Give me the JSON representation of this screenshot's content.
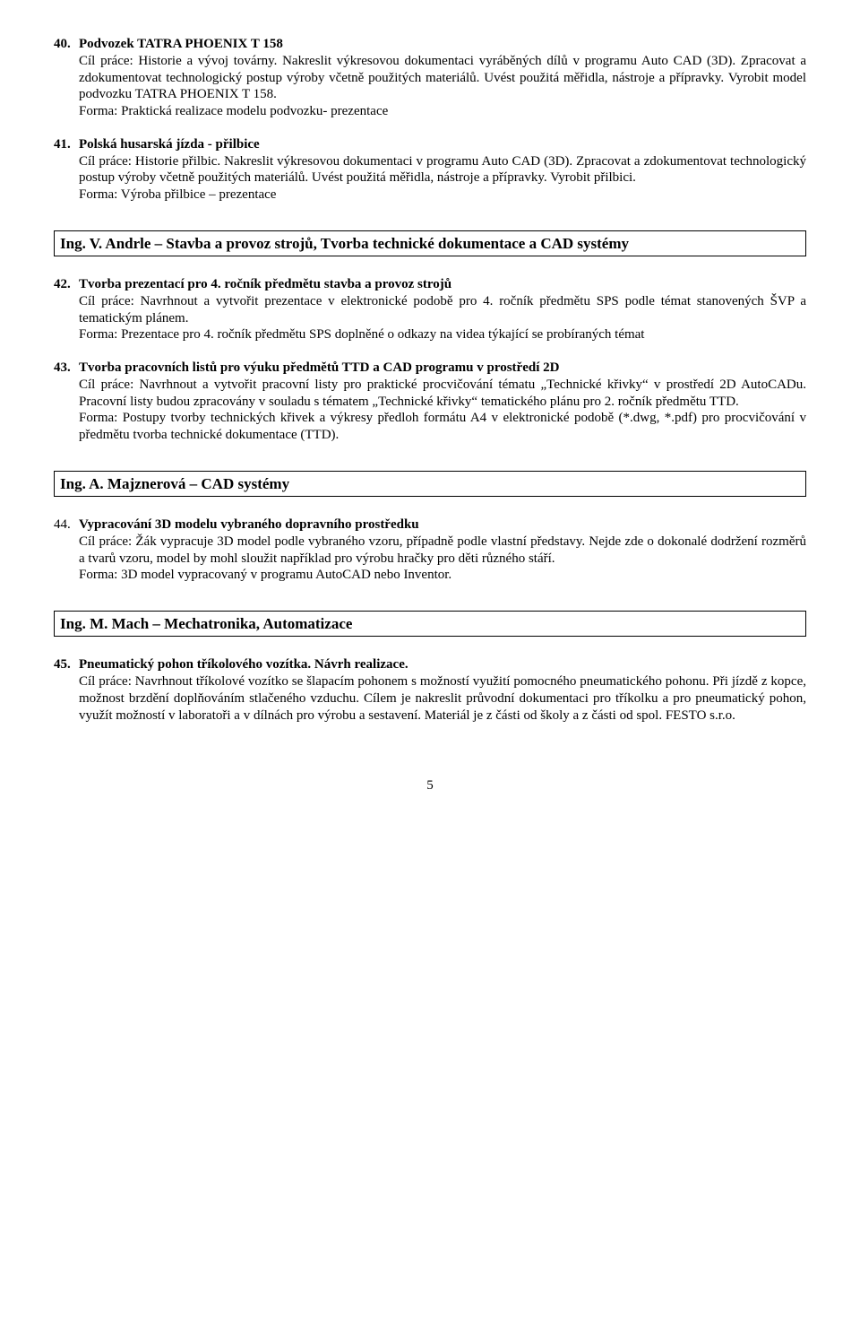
{
  "items": {
    "i40": {
      "num": "40.",
      "title": "Podvozek TATRA PHOENIX T 158",
      "body": "Cíl práce: Historie a vývoj továrny. Nakreslit výkresovou dokumentaci vyráběných dílů v programu Auto CAD (3D). Zpracovat a zdokumentovat technologický postup výroby včetně použitých materiálů. Uvést použitá měřidla, nástroje a přípravky. Vyrobit model podvozku TATRA PHOENIX T 158.\nForma: Praktická realizace modelu podvozku- prezentace"
    },
    "i41": {
      "num": "41.",
      "title": "Polská husarská jízda - přilbice",
      "body": "Cíl práce: Historie přilbic. Nakreslit výkresovou dokumentaci v programu Auto CAD (3D). Zpracovat a zdokumentovat technologický postup výroby včetně použitých materiálů. Uvést použitá měřidla, nástroje a přípravky. Vyrobit přilbici.\nForma: Výroba přilbice – prezentace"
    },
    "i42": {
      "num": "42.",
      "title": "Tvorba prezentací pro 4. ročník předmětu stavba a provoz strojů",
      "body": "Cíl práce: Navrhnout a vytvořit prezentace v elektronické podobě pro 4. ročník předmětu SPS podle témat stanovených ŠVP a tematickým plánem.\nForma: Prezentace pro 4. ročník předmětu SPS doplněné o odkazy na videa týkající se probíraných témat"
    },
    "i43": {
      "num": "43.",
      "title": "Tvorba pracovních listů pro výuku předmětů TTD a CAD programu v prostředí 2D",
      "body": "Cíl práce: Navrhnout a vytvořit pracovní listy pro praktické procvičování tématu „Technické křivky“ v prostředí 2D AutoCADu. Pracovní listy budou zpracovány v souladu s tématem „Technické křivky“ tematického plánu pro 2. ročník předmětu TTD.\nForma: Postupy tvorby technických křivek a výkresy předloh formátu A4 v elektronické podobě (*.dwg, *.pdf) pro procvičování v předmětu tvorba technické dokumentace (TTD)."
    },
    "i44": {
      "num": "44.",
      "title": "Vypracování 3D modelu vybraného dopravního prostředku",
      "body": "Cíl práce: Žák vypracuje 3D model podle vybraného vzoru, případně podle vlastní představy. Nejde zde o dokonalé dodržení rozměrů a tvarů vzoru, model by mohl sloužit například pro výrobu hračky pro děti různého stáří.\nForma: 3D model vypracovaný v programu AutoCAD nebo Inventor."
    },
    "i45": {
      "num": "45.",
      "title": "Pneumatický pohon tříkolového vozítka. Návrh realizace.",
      "body": "Cíl práce: Navrhnout tříkolové vozítko se šlapacím pohonem s možností využití pomocného pneumatického pohonu. Při jízdě z kopce, možnost brzdění doplňováním stlačeného vzduchu. Cílem je nakreslit průvodní dokumentaci pro tříkolku a pro pneumatický pohon, využít možností v laboratoři a v dílnách pro výrobu a sestavení. Materiál je z části od školy a z části od spol. FESTO s.r.o."
    }
  },
  "headings": {
    "h1": "Ing. V. Andrle – Stavba a provoz strojů, Tvorba technické dokumentace a CAD systémy",
    "h2": "Ing. A. Majznerová – CAD systémy",
    "h3": "Ing. M. Mach – Mechatronika, Automatizace"
  },
  "page_number": "5"
}
